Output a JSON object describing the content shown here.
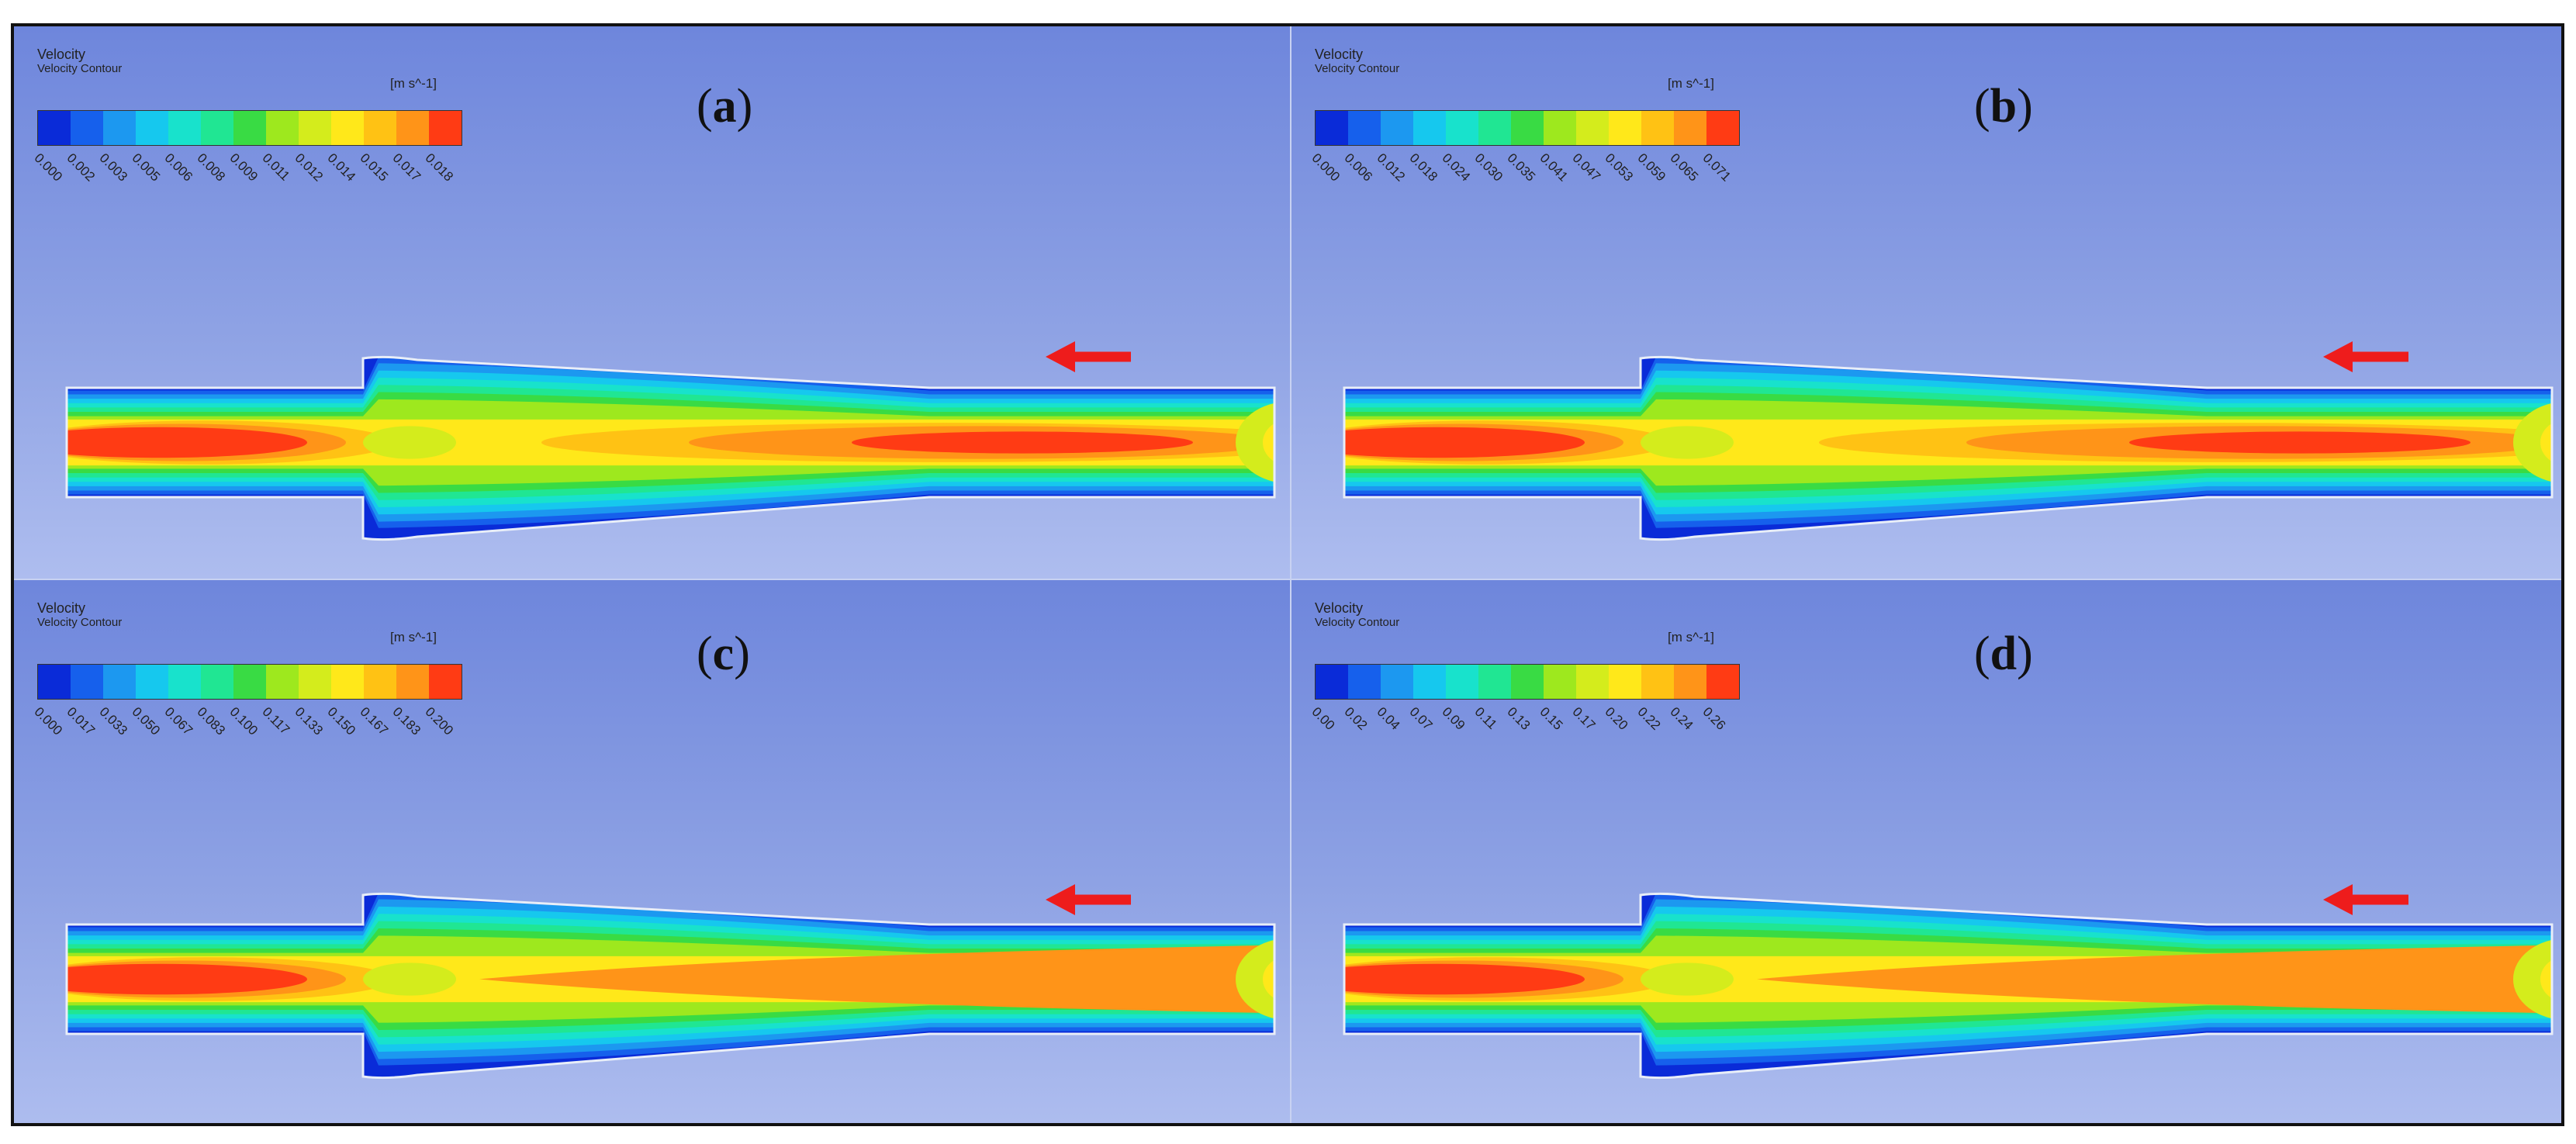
{
  "legend": {
    "title": "Velocity",
    "subtitle": "Velocity Contour",
    "unit": "[m s^-1]"
  },
  "colorbar": [
    "#0a2bd8",
    "#1660ec",
    "#1c98f0",
    "#16c8ee",
    "#18e2cc",
    "#20e693",
    "#39db44",
    "#9ee81e",
    "#d4ec1c",
    "#ffe81a",
    "#ffc214",
    "#ff9418",
    "#ff3b14"
  ],
  "panels": [
    {
      "label_open": "(",
      "label": "a",
      "label_close": ")",
      "ticks": [
        "0.000",
        "0.002",
        "0.003",
        "0.005",
        "0.006",
        "0.008",
        "0.009",
        "0.011",
        "0.012",
        "0.014",
        "0.015",
        "0.017",
        "0.018"
      ]
    },
    {
      "label_open": "(",
      "label": "b",
      "label_close": ")",
      "ticks": [
        "0.000",
        "0.006",
        "0.012",
        "0.018",
        "0.024",
        "0.030",
        "0.035",
        "0.041",
        "0.047",
        "0.053",
        "0.059",
        "0.065",
        "0.071"
      ]
    },
    {
      "label_open": "(",
      "label": "c",
      "label_close": ")",
      "ticks": [
        "0.000",
        "0.017",
        "0.033",
        "0.050",
        "0.067",
        "0.083",
        "0.100",
        "0.117",
        "0.133",
        "0.150",
        "0.167",
        "0.183",
        "0.200"
      ]
    },
    {
      "label_open": "(",
      "label": "d",
      "label_close": ")",
      "ticks": [
        "0.00",
        "0.02",
        "0.04",
        "0.07",
        "0.09",
        "0.11",
        "0.13",
        "0.15",
        "0.17",
        "0.20",
        "0.22",
        "0.24",
        "0.26"
      ]
    }
  ]
}
